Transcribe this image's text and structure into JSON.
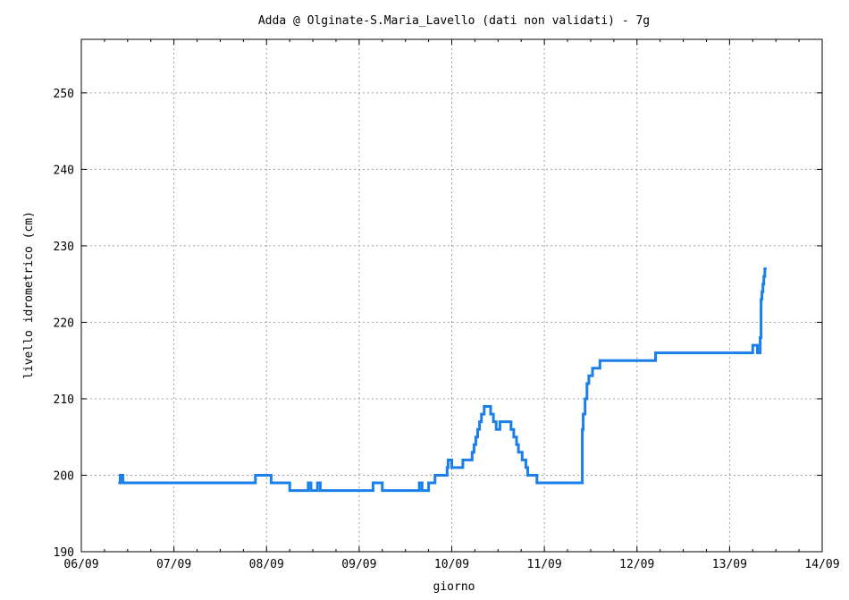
{
  "chart_data": {
    "type": "line",
    "title": "Adda @ Olginate-S.Maria_Lavello (dati non validati) - 7g",
    "xlabel": "giorno",
    "ylabel": "livello idrometrico (cm)",
    "x_ticks": [
      "06/09",
      "07/09",
      "08/09",
      "09/09",
      "10/09",
      "11/09",
      "12/09",
      "13/09",
      "14/09"
    ],
    "y_ticks": [
      "190",
      "200",
      "210",
      "220",
      "230",
      "240",
      "250"
    ],
    "xlim": [
      0,
      8
    ],
    "ylim": [
      190,
      257
    ],
    "grid": true,
    "legend": "none",
    "series": [
      {
        "color": "#1a7fe8",
        "step": true,
        "x": [
          0.4,
          0.42,
          0.45,
          0.47,
          1.85,
          1.88,
          2.0,
          2.05,
          2.25,
          2.45,
          2.48,
          2.55,
          2.58,
          3.15,
          3.25,
          3.65,
          3.68,
          3.75,
          3.78,
          3.82,
          3.92,
          3.95,
          3.96,
          4.0,
          4.05,
          4.12,
          4.14,
          4.22,
          4.24,
          4.26,
          4.28,
          4.3,
          4.32,
          4.35,
          4.42,
          4.45,
          4.48,
          4.5,
          4.52,
          4.56,
          4.64,
          4.67,
          4.7,
          4.72,
          4.74,
          4.76,
          4.78,
          4.8,
          4.82,
          4.85,
          4.92,
          5.4,
          5.41,
          5.42,
          5.44,
          5.46,
          5.48,
          5.5,
          5.52,
          5.56,
          5.6,
          6.2,
          7.25,
          7.3,
          7.33,
          7.34,
          7.35,
          7.36,
          7.37,
          7.38,
          7.4
        ],
        "y": [
          199,
          200,
          199,
          199,
          199,
          200,
          200,
          199,
          198,
          199,
          198,
          199,
          198,
          199,
          198,
          199,
          198,
          199,
          199,
          200,
          200,
          201,
          202,
          201,
          201,
          202,
          202,
          203,
          204,
          205,
          206,
          207,
          208,
          209,
          208,
          207,
          206,
          206,
          207,
          207,
          206,
          205,
          204,
          203,
          203,
          202,
          202,
          201,
          200,
          200,
          199,
          199,
          206,
          208,
          210,
          212,
          213,
          213,
          214,
          214,
          215,
          216,
          217,
          216,
          218,
          223,
          224,
          225,
          226,
          227,
          227
        ]
      }
    ]
  }
}
